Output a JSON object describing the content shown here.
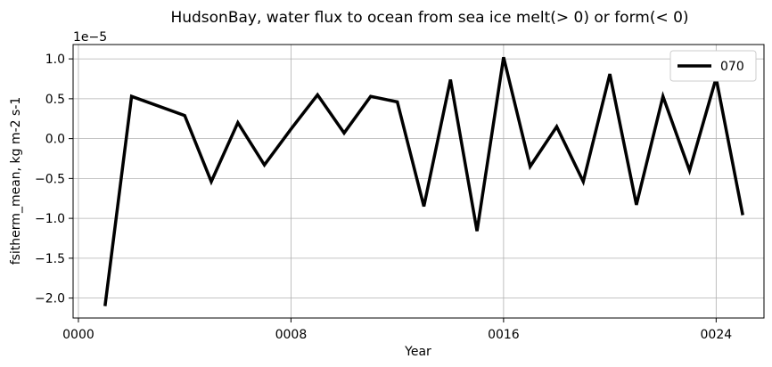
{
  "chart_data": {
    "type": "line",
    "title": "HudsonBay, water flux to ocean from sea ice melt(> 0) or form(< 0)",
    "xlabel": "Year",
    "ylabel": "fsitherm_mean, kg m-2 s-1",
    "y_multiplier_label": "1e−5",
    "xlim": [
      -0.2,
      25.8
    ],
    "ylim": [
      -2.25,
      1.18
    ],
    "x_ticks": [
      0,
      8,
      16,
      24
    ],
    "x_tick_labels": [
      "0000",
      "0008",
      "0016",
      "0024"
    ],
    "y_ticks": [
      -2.0,
      -1.5,
      -1.0,
      -0.5,
      0.0,
      0.5,
      1.0
    ],
    "y_tick_labels": [
      "−2.0",
      "−1.5",
      "−1.0",
      "−0.5",
      "0.0",
      "0.5",
      "1.0"
    ],
    "grid": true,
    "legend_position": "top-right",
    "series": [
      {
        "name": "070",
        "color": "#000000",
        "x": [
          1,
          2,
          4,
          5,
          6,
          7,
          8,
          9,
          10,
          11,
          12,
          13,
          14,
          15,
          16,
          17,
          18,
          19,
          20,
          21,
          22,
          23,
          24,
          25
        ],
        "y": [
          -2.1,
          0.53,
          0.29,
          -0.54,
          0.2,
          -0.33,
          0.12,
          0.55,
          0.07,
          0.53,
          0.46,
          -0.85,
          0.74,
          -1.16,
          1.02,
          -0.35,
          0.15,
          -0.54,
          0.81,
          -0.83,
          0.53,
          -0.4,
          0.76,
          -0.96
        ]
      }
    ]
  }
}
